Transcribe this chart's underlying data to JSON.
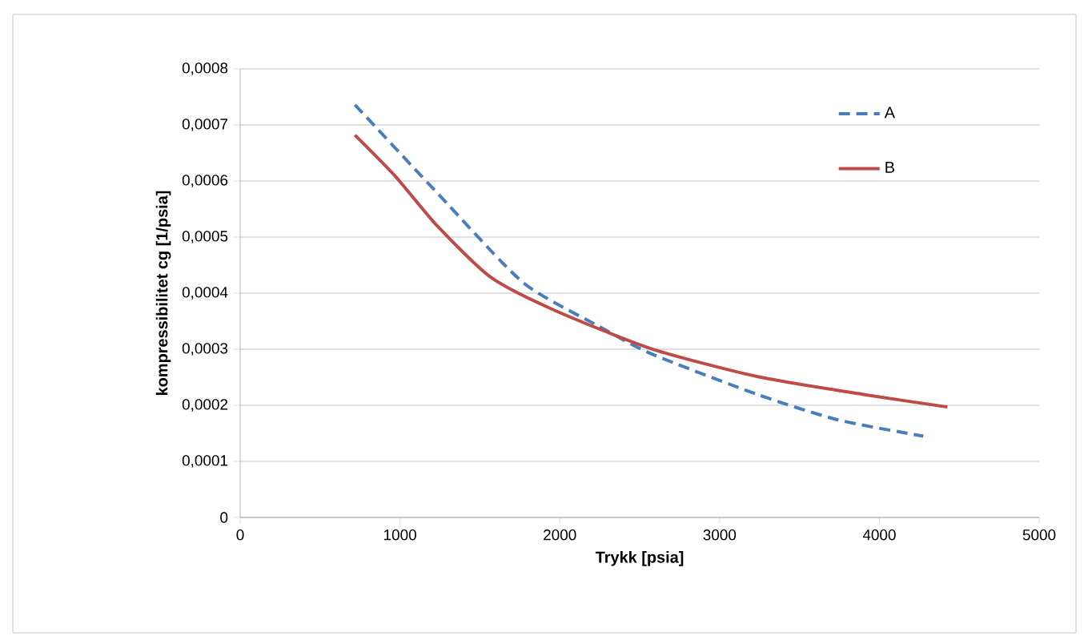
{
  "chart_data": {
    "type": "line",
    "xlabel": "Trykk [psia]",
    "ylabel": "kompressibilitet cg [1/psia]",
    "xlim": [
      0,
      5000
    ],
    "xticks": [
      0,
      1000,
      2000,
      3000,
      4000,
      5000
    ],
    "ylim": [
      0,
      0.0008
    ],
    "yticks": [
      0,
      {
        "value": 0.0001,
        "label": "0,0001"
      },
      {
        "value": 0.0002,
        "label": "0,0002"
      },
      {
        "value": 0.0003,
        "label": "0,0003"
      },
      {
        "value": 0.0004,
        "label": "0,0004"
      },
      {
        "value": 0.0005,
        "label": "0,0005"
      },
      {
        "value": 0.0006,
        "label": "0,0006"
      },
      {
        "value": 0.0007,
        "label": "0,0007"
      },
      {
        "value": 0.0008,
        "label": "0,0008"
      }
    ],
    "grid": "y",
    "legend": "top right",
    "series": [
      {
        "name": "A",
        "color": "#4a7ebb",
        "line_style": "dashed",
        "x": [
          718,
          1236,
          1770,
          2238,
          2572,
          3240,
          3741,
          4275
        ],
        "values": [
          0.000736,
          0.000578,
          0.000419,
          0.000342,
          0.000292,
          0.000219,
          0.000174,
          0.000145
        ]
      },
      {
        "name": "B",
        "color": "#be4b48",
        "line_style": "solid",
        "x": [
          718,
          969,
          1236,
          1570,
          1971,
          2572,
          3240,
          3908,
          4426
        ],
        "values": [
          0.000682,
          0.000609,
          0.000519,
          0.000428,
          0.000369,
          0.000301,
          0.000251,
          0.000219,
          0.000197
        ]
      }
    ]
  }
}
